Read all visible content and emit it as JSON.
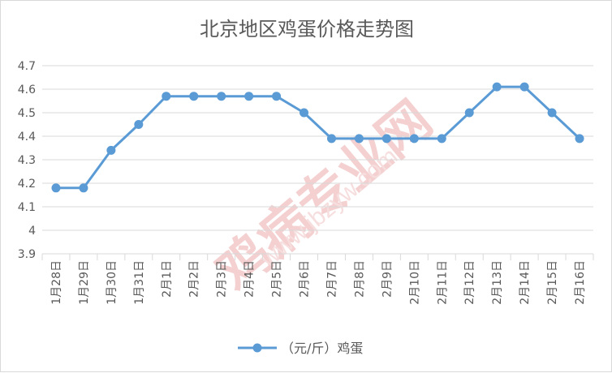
{
  "chart_data": {
    "type": "line",
    "title": "北京地区鸡蛋价格走势图",
    "categories": [
      "1月28日",
      "1月29日",
      "1月30日",
      "1月31日",
      "2月1日",
      "2月2日",
      "2月3日",
      "2月4日",
      "2月5日",
      "2月6日",
      "2月7日",
      "2月8日",
      "2月9日",
      "2月10日",
      "2月11日",
      "2月12日",
      "2月13日",
      "2月14日",
      "2月15日",
      "2月16日"
    ],
    "series": [
      {
        "name": "（元/斤）鸡蛋",
        "values": [
          4.18,
          4.18,
          4.34,
          4.45,
          4.57,
          4.57,
          4.57,
          4.57,
          4.57,
          4.5,
          4.39,
          4.39,
          4.39,
          4.39,
          4.39,
          4.5,
          4.61,
          4.61,
          4.5,
          4.39
        ],
        "color": "#5b9bd5"
      }
    ],
    "ylim": [
      3.9,
      4.7
    ],
    "yticks": [
      "3.9",
      "4",
      "4.1",
      "4.2",
      "4.3",
      "4.4",
      "4.5",
      "4.6",
      "4.7"
    ],
    "grid": true,
    "legend": "bottom",
    "colors": {
      "grid": "#d9d9d9",
      "axis_text": "#595959",
      "title": "#595959",
      "watermark": "#f2c9c9"
    }
  },
  "watermark": {
    "brand": "鸡病专业网",
    "url": "www.jbzyw.com"
  }
}
